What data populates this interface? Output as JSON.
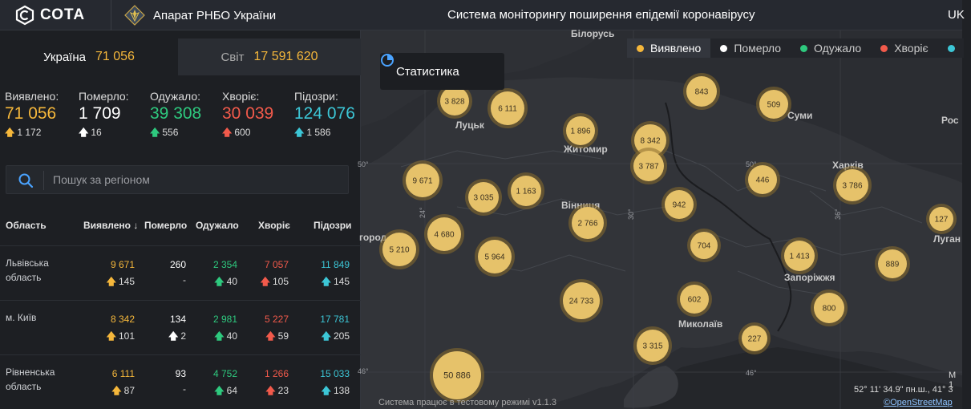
{
  "header": {
    "logo_text": "СОТА",
    "org": "Апарат РНБО України",
    "title": "Система моніторингу поширення епідемії коронавірусу",
    "lang": "UK"
  },
  "tabs": [
    {
      "label": "Україна",
      "value": "71 056"
    },
    {
      "label": "Світ",
      "value": "17 591 620"
    }
  ],
  "totals": [
    {
      "label": "Виявлено:",
      "value": "71 056",
      "delta": "1 172",
      "color": "#f5b73b"
    },
    {
      "label": "Померло:",
      "value": "1 709",
      "delta": "16",
      "color": "#ffffff"
    },
    {
      "label": "Одужало:",
      "value": "39 308",
      "delta": "556",
      "color": "#2ec97e"
    },
    {
      "label": "Хворіє:",
      "value": "30 039",
      "delta": "600",
      "color": "#f25a4b"
    },
    {
      "label": "Підозри:",
      "value": "124 076",
      "delta": "1 586",
      "color": "#3cc6d6"
    }
  ],
  "search": {
    "placeholder": "Пошук за регіоном"
  },
  "table": {
    "headers": [
      "Область",
      "Виявлено ↓",
      "Померло",
      "Одужало",
      "Хворіє",
      "Підозри"
    ],
    "rows": [
      {
        "name": "Львівська область",
        "detected": "9 671",
        "detected_d": "145",
        "died": "260",
        "died_d": "-",
        "recovered": "2 354",
        "recovered_d": "40",
        "sick": "7 057",
        "sick_d": "105",
        "suspected": "11 849",
        "suspected_d": "145"
      },
      {
        "name": "м. Київ",
        "detected": "8 342",
        "detected_d": "101",
        "died": "134",
        "died_d": "2",
        "recovered": "2 981",
        "recovered_d": "40",
        "sick": "5 227",
        "sick_d": "59",
        "suspected": "17 781",
        "suspected_d": "205"
      },
      {
        "name": "Рівненська область",
        "detected": "6 111",
        "detected_d": "87",
        "died": "93",
        "died_d": "-",
        "recovered": "4 752",
        "recovered_d": "64",
        "sick": "1 266",
        "sick_d": "23",
        "suspected": "15 033",
        "suspected_d": "138"
      }
    ]
  },
  "map": {
    "stats_button": "Статистика",
    "legend": [
      {
        "label": "Виявлено",
        "color": "#f5b73b"
      },
      {
        "label": "Померло",
        "color": "#ffffff"
      },
      {
        "label": "Одужало",
        "color": "#2ec97e"
      },
      {
        "label": "Хворіє",
        "color": "#f25a4b"
      },
      {
        "label": "",
        "color": "#3cc6d6"
      }
    ],
    "cities": [
      "Білорусь",
      "Луцьк",
      "Житомир",
      "Вінниця",
      "Суми",
      "Харків",
      "Рос",
      "Луган",
      "Запоріжжя",
      "Миколаїв",
      "город"
    ],
    "clusters": [
      "3 828",
      "6 111",
      "1 896",
      "8 342",
      "843",
      "509",
      "9 671",
      "3 787",
      "3 035",
      "1 163",
      "446",
      "3 786",
      "942",
      "2 766",
      "4 680",
      "127",
      "5 210",
      "5 964",
      "704",
      "1 413",
      "889",
      "602",
      "24 733",
      "800",
      "227",
      "3 315",
      "50 886"
    ],
    "grid_labels": [
      "50°",
      "24°",
      "30°",
      "50°",
      "36°",
      "46°",
      "46°"
    ],
    "footer": "Система працює в тестовому режимі v1.1.3",
    "coords": "52° 11' 34.9\" пн.ш., 41° 3",
    "osm": "©OpenStreetMap",
    "scale": "М 1"
  }
}
